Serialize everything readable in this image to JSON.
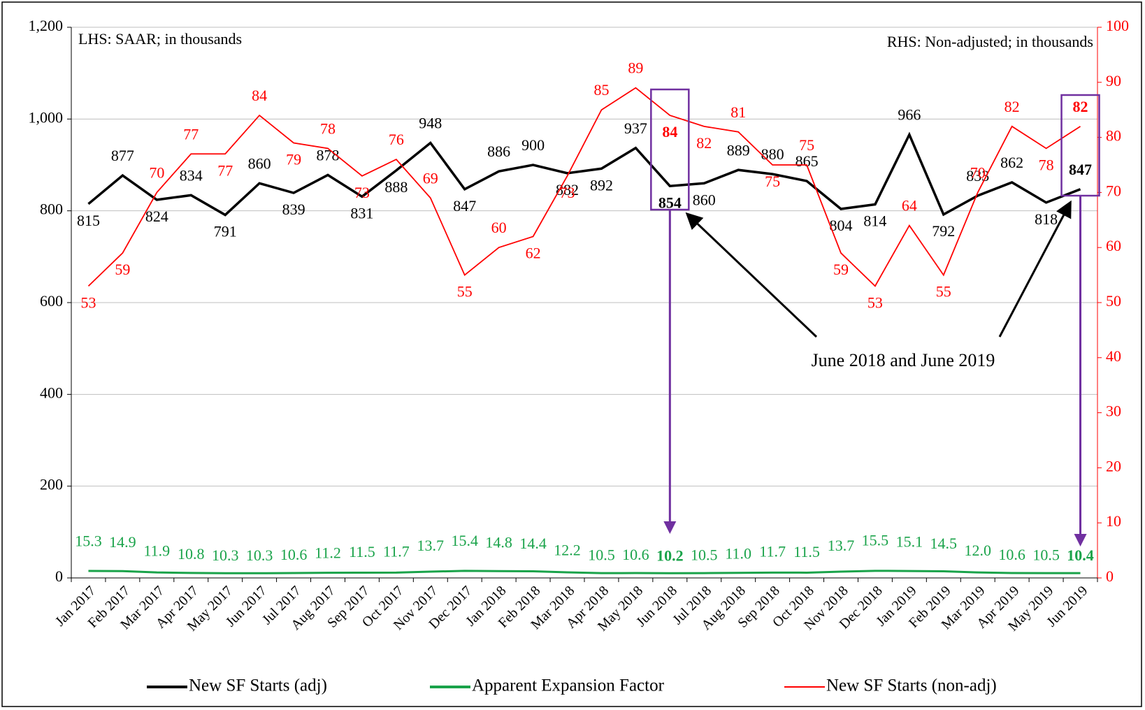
{
  "chart_data": {
    "type": "line",
    "annotations": [
      "LHS: SAAR;  in thousands",
      "RHS: Non-adjusted; in thousands",
      "June 2018 and June 2019"
    ],
    "categories": [
      "Jan 2017",
      "Feb 2017",
      "Mar 2017",
      "Apr 2017",
      "May 2017",
      "Jun 2017",
      "Jul 2017",
      "Aug 2017",
      "Sep 2017",
      "Oct 2017",
      "Nov 2017",
      "Dec 2017",
      "Jan 2018",
      "Feb 2018",
      "Mar 2018",
      "Apr 2018",
      "May 2018",
      "Jun 2018",
      "Jul 2018",
      "Aug 2018",
      "Sep 2018",
      "Oct 2018",
      "Nov 2018",
      "Dec 2018",
      "Jan 2019",
      "Feb 2019",
      "Mar 2019",
      "Apr 2019",
      "May 2019",
      "Jun 2019"
    ],
    "series": [
      {
        "name": "New SF Starts (adj)",
        "color": "#000000",
        "axis": "y",
        "values": [
          815,
          877,
          824,
          834,
          791,
          860,
          839,
          878,
          831,
          888,
          948,
          847,
          886,
          900,
          882,
          892,
          937,
          854,
          860,
          889,
          880,
          865,
          804,
          814,
          966,
          792,
          833,
          862,
          818,
          847
        ]
      },
      {
        "name": "Apparent Expansion Factor",
        "color": "#1aa34a",
        "axis": "y",
        "values": [
          15.3,
          14.9,
          11.9,
          10.8,
          10.3,
          10.3,
          10.6,
          11.2,
          11.5,
          11.7,
          13.7,
          15.4,
          14.8,
          14.4,
          12.2,
          10.5,
          10.6,
          10.2,
          10.5,
          11.0,
          11.7,
          11.5,
          13.7,
          15.5,
          15.1,
          14.5,
          12.0,
          10.6,
          10.5,
          10.4
        ],
        "value_labels": [
          "15.3",
          "14.9",
          "11.9",
          "10.8",
          "10.3",
          "10.3",
          "10.6",
          "11.2",
          "11.5",
          "11.7",
          "13.7",
          "15.4",
          "14.8",
          "14.4",
          "12.2",
          "10.5",
          "10.6",
          "10.2",
          "10.5",
          "11.0",
          "11.7",
          "11.5",
          "13.7",
          "15.5",
          "15.1",
          "14.5",
          "12.0",
          "10.6",
          "10.5",
          "10.4"
        ]
      },
      {
        "name": "New SF Starts (non-adj)",
        "color": "#ff0000",
        "axis": "y2",
        "values": [
          53,
          59,
          70,
          77,
          77,
          84,
          79,
          78,
          73,
          76,
          69,
          55,
          60,
          62,
          73,
          85,
          89,
          84,
          82,
          81,
          75,
          75,
          59,
          53,
          64,
          55,
          70,
          82,
          78,
          82
        ]
      }
    ],
    "ylim": [
      0,
      1200
    ],
    "yticks": [
      0,
      200,
      400,
      600,
      800,
      {
        "value": 1000,
        "label": "1,000"
      },
      {
        "value": 1200,
        "label": "1,200"
      }
    ],
    "y2lim": [
      0,
      100
    ],
    "y2ticks": [
      0,
      10,
      20,
      30,
      40,
      50,
      60,
      70,
      80,
      90,
      100
    ],
    "grid": true,
    "legend": "bottom"
  }
}
